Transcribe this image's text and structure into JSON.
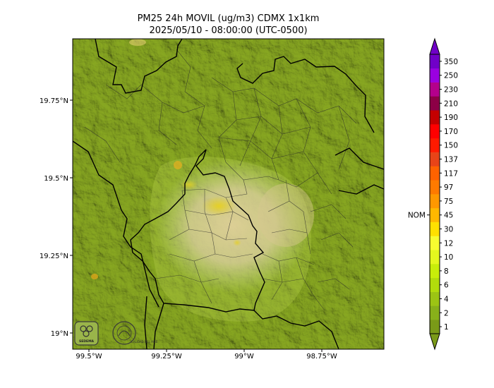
{
  "title_line1": "PM25 24h MOVIL (ug/m3) CDMX 1x1km",
  "title_line2": "2025/05/10 - 08:00:00 (UTC-0500)",
  "longitude_ticks": [
    "99.5°W",
    "99.25°W",
    "99°W",
    "98.75°W"
  ],
  "latitude_ticks": [
    "19.75°N",
    "19.5°N",
    "19.25°N",
    "19°N"
  ],
  "colorbar": {
    "labels": [
      "1",
      "2",
      "4",
      "6",
      "8",
      "10",
      "12",
      "30",
      "45",
      "75",
      "97",
      "117",
      "137",
      "150",
      "170",
      "190",
      "210",
      "230",
      "250",
      "350"
    ],
    "colors": [
      "#7a9a18",
      "#88b01a",
      "#9cc414",
      "#b2dc0c",
      "#c8ee0a",
      "#e4f81e",
      "#f8fc30",
      "#ffe000",
      "#ffb800",
      "#ff9800",
      "#ff7a00",
      "#ff6200",
      "#e84418",
      "#ff1a00",
      "#ff0000",
      "#c40000",
      "#8c0046",
      "#b4008c",
      "#9a00e0",
      "#7000c8"
    ],
    "nom_label": "NOM",
    "nom_value": 45
  },
  "logos": {
    "sedema_text": "SEDEMA",
    "seal_text": "CALIDAD DEL AIRE"
  }
}
